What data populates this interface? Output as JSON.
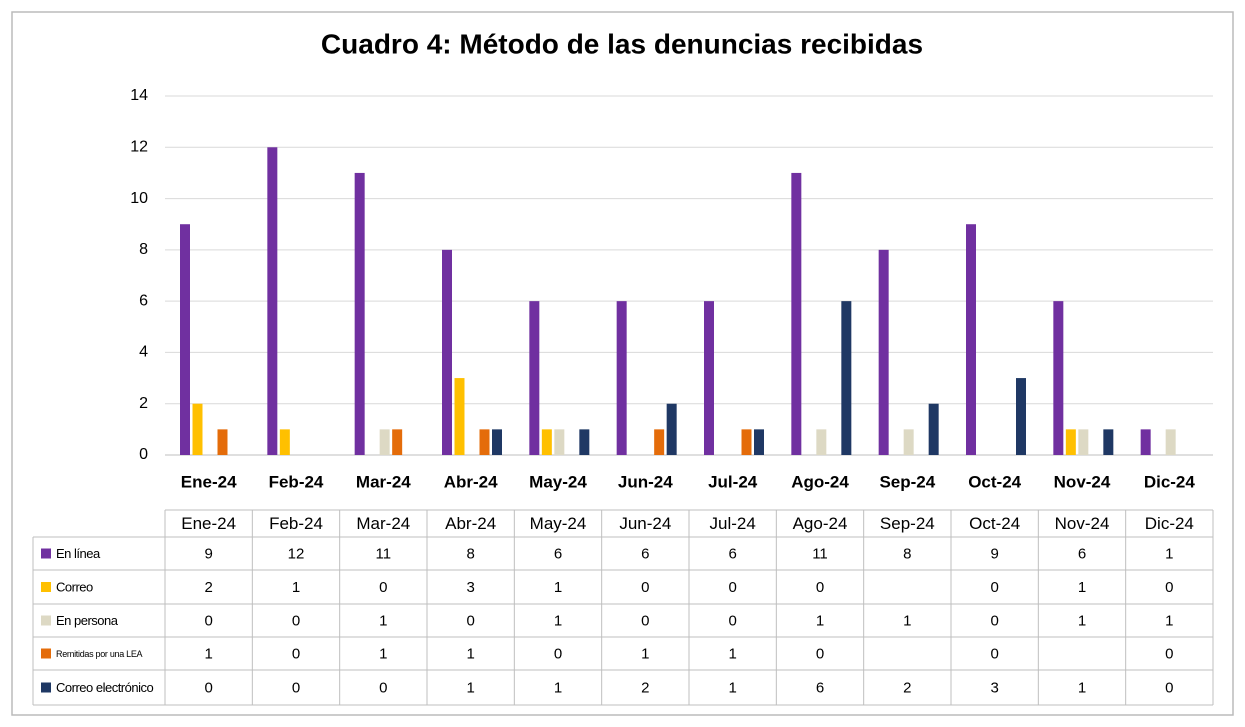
{
  "chart_data": {
    "type": "bar",
    "title": "Cuadro 4: Método de las denuncias recibidas",
    "categories": [
      "Ene-24",
      "Feb-24",
      "Mar-24",
      "Abr-24",
      "May-24",
      "Jun-24",
      "Jul-24",
      "Ago-24",
      "Sep-24",
      "Oct-24",
      "Nov-24",
      "Dic-24"
    ],
    "series": [
      {
        "name": "En línea",
        "color": "#7030a0",
        "values": [
          9,
          12,
          11,
          8,
          6,
          6,
          6,
          11,
          8,
          9,
          6,
          1
        ]
      },
      {
        "name": "Correo",
        "color": "#ffc000",
        "values": [
          2,
          1,
          0,
          3,
          1,
          0,
          0,
          0,
          null,
          0,
          1,
          0
        ]
      },
      {
        "name": "En persona",
        "color": "#ddd9c4",
        "values": [
          0,
          0,
          1,
          0,
          1,
          0,
          0,
          1,
          1,
          0,
          1,
          1
        ]
      },
      {
        "name": "Remitidas por una LEA",
        "color": "#e46c0a",
        "values": [
          1,
          0,
          1,
          1,
          0,
          1,
          1,
          0,
          null,
          0,
          null,
          0
        ]
      },
      {
        "name": "Correo electrónico",
        "color": "#1f3864",
        "values": [
          0,
          0,
          0,
          1,
          1,
          2,
          1,
          6,
          2,
          3,
          1,
          0
        ]
      }
    ],
    "ylim": [
      0,
      14
    ],
    "yticks": [
      0,
      2,
      4,
      6,
      8,
      10,
      12,
      14
    ],
    "grid": true
  }
}
